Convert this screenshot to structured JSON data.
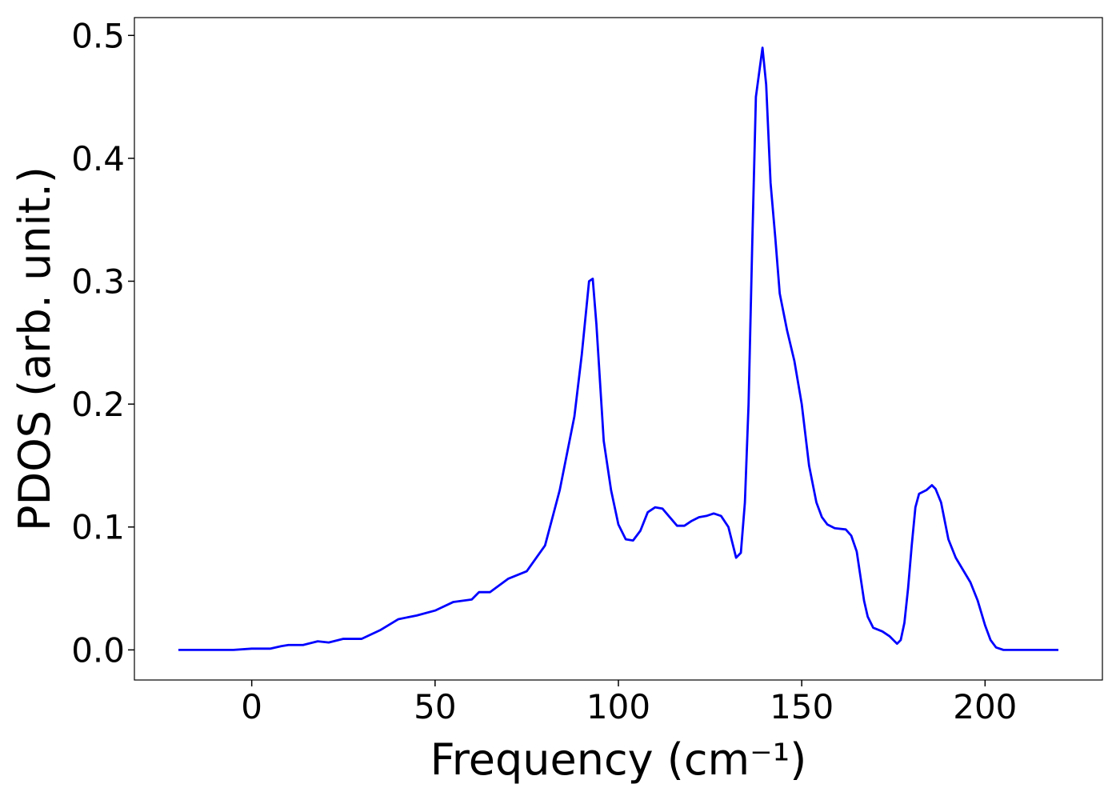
{
  "chart_data": {
    "type": "line",
    "xlabel": "Frequency (cm⁻¹)",
    "ylabel": "PDOS (arb. unit.)",
    "xlim": [
      -32,
      232
    ],
    "ylim": [
      -0.0245,
      0.5145
    ],
    "xticks": [
      0,
      50,
      100,
      150,
      200
    ],
    "yticks": [
      {
        "value": 0,
        "label": "0.0"
      },
      0.1,
      0.2,
      0.3,
      0.4,
      0.5
    ],
    "series": [
      {
        "color": "#0000ff",
        "x": [
          -20,
          -5,
          0,
          5,
          8,
          10,
          14,
          18,
          21,
          25,
          30,
          35,
          40,
          45,
          50,
          55,
          60,
          62,
          65,
          70,
          75,
          80,
          84,
          88,
          90,
          92,
          93,
          94,
          96,
          98,
          100,
          102,
          104,
          106,
          108,
          110,
          112,
          114,
          116,
          118,
          120,
          122,
          124,
          126,
          128,
          130,
          132.1,
          133.4,
          134.5,
          135.5,
          136.5,
          137.5,
          139.3,
          140.3,
          141.5,
          142.8,
          144,
          146,
          148,
          150,
          152,
          154,
          155.5,
          157,
          159,
          162,
          163.5,
          165,
          167,
          168,
          169.5,
          172,
          174,
          176,
          177,
          178,
          179,
          180,
          181,
          182,
          184,
          185.5,
          186.5,
          188,
          190,
          192,
          194,
          196,
          198,
          200,
          201.5,
          203,
          205,
          210,
          220
        ],
        "values": [
          0,
          0,
          0.001,
          0.001,
          0.003,
          0.004,
          0.004,
          0.007,
          0.006,
          0.009,
          0.009,
          0.016,
          0.025,
          0.028,
          0.032,
          0.039,
          0.041,
          0.047,
          0.047,
          0.058,
          0.064,
          0.085,
          0.13,
          0.19,
          0.24,
          0.3,
          0.302,
          0.265,
          0.17,
          0.13,
          0.102,
          0.09,
          0.089,
          0.097,
          0.112,
          0.116,
          0.115,
          0.108,
          0.101,
          0.101,
          0.105,
          0.108,
          0.109,
          0.111,
          0.109,
          0.1,
          0.075,
          0.079,
          0.12,
          0.2,
          0.33,
          0.45,
          0.49,
          0.46,
          0.38,
          0.335,
          0.29,
          0.26,
          0.235,
          0.2,
          0.15,
          0.12,
          0.108,
          0.102,
          0.099,
          0.098,
          0.093,
          0.08,
          0.04,
          0.027,
          0.018,
          0.015,
          0.011,
          0.005,
          0.008,
          0.022,
          0.05,
          0.085,
          0.116,
          0.127,
          0.13,
          0.134,
          0.131,
          0.12,
          0.09,
          0.075,
          0.065,
          0.055,
          0.04,
          0.02,
          0.008,
          0.002,
          0,
          0,
          0
        ]
      }
    ]
  }
}
